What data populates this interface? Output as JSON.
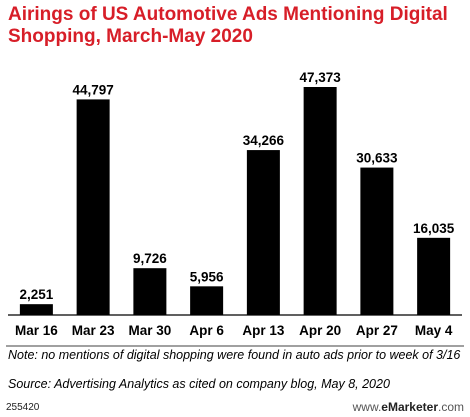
{
  "title": "Airings of US Automotive Ads Mentioning Digital Shopping, March-May 2020",
  "colors": {
    "title": "#d71e28",
    "bar": "#000000"
  },
  "chart_data": {
    "type": "bar",
    "categories": [
      "Mar 16",
      "Mar 23",
      "Mar 30",
      "Apr 6",
      "Apr 13",
      "Apr 20",
      "Apr 27",
      "May 4"
    ],
    "values": [
      2251,
      44797,
      9726,
      5956,
      34266,
      47373,
      30633,
      16035
    ],
    "value_labels": [
      "2,251",
      "44,797",
      "9,726",
      "5,956",
      "34,266",
      "47,373",
      "30,633",
      "16,035"
    ],
    "title": "Airings of US Automotive Ads Mentioning Digital Shopping, March-May 2020",
    "xlabel": "",
    "ylabel": "",
    "ylim": [
      0,
      47373
    ],
    "grid": false,
    "legend": "none"
  },
  "footer": {
    "note": "Note: no mentions of digital shopping were found in auto ads prior to week of 3/16",
    "source": "Source: Advertising Analytics as cited on company blog, May 8, 2020",
    "chart_id": "255420",
    "brand_prefix": "www.",
    "brand_name": "eMarketer",
    "brand_suffix": ".com"
  }
}
